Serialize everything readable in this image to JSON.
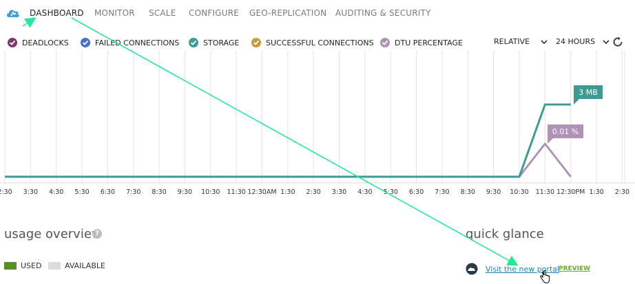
{
  "nav": {
    "tabs": [
      {
        "label": "DASHBOARD",
        "active": true
      },
      {
        "label": "MONITOR",
        "active": false
      },
      {
        "label": "SCALE",
        "active": false
      },
      {
        "label": "CONFIGURE",
        "active": false
      },
      {
        "label": "GEO-REPLICATION",
        "active": false
      },
      {
        "label": "AUDITING & SECURITY",
        "active": false
      }
    ]
  },
  "metrics": [
    {
      "label": "DEADLOCKS",
      "color": "#7b3a6e"
    },
    {
      "label": "FAILED CONNECTIONS",
      "color": "#4a6fc4"
    },
    {
      "label": "STORAGE",
      "color": "#3e9a93"
    },
    {
      "label": "SUCCESSFUL CONNECTIONS",
      "color": "#c59a3a"
    },
    {
      "label": "DTU PERCENTAGE",
      "color": "#b092b6"
    }
  ],
  "controls": {
    "mode": "RELATIVE",
    "range": "24 HOURS"
  },
  "chart_data": {
    "type": "line",
    "x": [
      "2:30",
      "3:30",
      "4:30",
      "5:30",
      "6:30",
      "7:30",
      "8:30",
      "9:30",
      "10:30",
      "11:30",
      "12:30AM",
      "1:30",
      "2:30",
      "3:30",
      "4:30",
      "5:30",
      "6:30",
      "7:30",
      "8:30",
      "9:30",
      "10:30",
      "11:30",
      "12:30PM",
      "1:30",
      "2:30"
    ],
    "series": [
      {
        "name": "STORAGE",
        "color": "#3e9a93",
        "callout": "3 MB",
        "values": [
          0,
          0,
          0,
          0,
          0,
          0,
          0,
          0,
          0,
          0,
          0,
          0,
          0,
          0,
          0,
          0,
          0,
          0,
          0,
          0,
          0,
          3,
          3,
          null,
          null
        ]
      },
      {
        "name": "DTU PERCENTAGE",
        "color": "#b092b6",
        "callout": "0.01 %",
        "values": [
          0,
          0,
          0,
          0,
          0,
          0,
          0,
          0,
          0,
          0,
          0,
          0,
          0,
          0,
          0,
          0,
          0,
          0,
          0,
          0,
          0,
          0.01,
          0,
          null,
          null
        ]
      }
    ],
    "grid": true
  },
  "usage": {
    "title": "usage overview",
    "help": "?",
    "legend": [
      {
        "label": "USED",
        "color": "#5a8f26"
      },
      {
        "label": "AVAILABLE",
        "color": "#dcdcdc"
      }
    ]
  },
  "glance": {
    "title": "quick glance",
    "link": "Visit the new portal",
    "badge": "PREVIEW"
  },
  "annotation": {
    "color": "#27e69a"
  }
}
